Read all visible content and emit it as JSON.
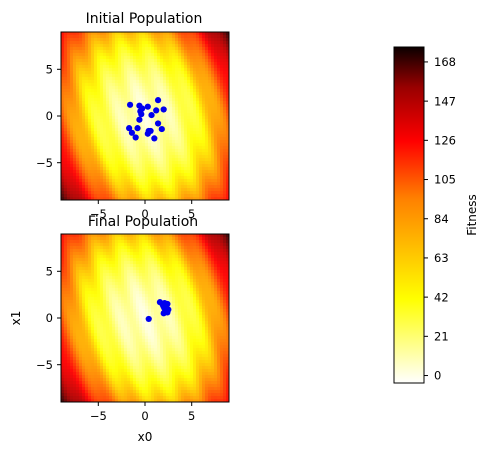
{
  "chart_data": [
    {
      "type": "scatter",
      "title": "Initial Population",
      "xlabel": "",
      "ylabel": "",
      "xlim": [
        -9,
        9
      ],
      "ylim": [
        -9,
        9
      ],
      "xticks": [
        "−5",
        "0",
        "5"
      ],
      "yticks": [
        "5",
        "0",
        "−5"
      ],
      "background": "fitness-heatmap",
      "point_color": "#0000ee",
      "points": [
        [
          -1.6,
          1.2
        ],
        [
          -0.6,
          1.1
        ],
        [
          0.3,
          1.0
        ],
        [
          1.4,
          1.7
        ],
        [
          1.2,
          0.6
        ],
        [
          2.0,
          0.7
        ],
        [
          -0.5,
          0.5
        ],
        [
          0.7,
          0.1
        ],
        [
          -0.4,
          0.2
        ],
        [
          -0.6,
          -0.4
        ],
        [
          1.4,
          -0.8
        ],
        [
          -1.7,
          -1.3
        ],
        [
          -0.8,
          -1.3
        ],
        [
          1.8,
          -1.4
        ],
        [
          0.6,
          -1.6
        ],
        [
          0.3,
          -1.9
        ],
        [
          -1.4,
          -1.8
        ],
        [
          0.4,
          -1.6
        ],
        [
          -1.0,
          -2.3
        ],
        [
          -0.3,
          0.8
        ],
        [
          1.0,
          -2.4
        ]
      ]
    },
    {
      "type": "scatter",
      "title": "Final Population",
      "xlabel": "x0",
      "ylabel": "x1",
      "xlim": [
        -9,
        9
      ],
      "ylim": [
        -9,
        9
      ],
      "xticks": [
        "−5",
        "0",
        "5"
      ],
      "yticks": [
        "5",
        "0",
        "−5"
      ],
      "background": "fitness-heatmap",
      "point_color": "#0000ee",
      "points": [
        [
          1.6,
          1.7
        ],
        [
          2.1,
          1.6
        ],
        [
          2.4,
          1.5
        ],
        [
          2.0,
          1.2
        ],
        [
          2.3,
          1.1
        ],
        [
          1.9,
          1.4
        ],
        [
          2.2,
          0.8
        ],
        [
          2.5,
          0.9
        ],
        [
          2.0,
          0.5
        ],
        [
          2.4,
          0.6
        ],
        [
          2.1,
          1.0
        ],
        [
          0.4,
          -0.1
        ]
      ]
    },
    {
      "type": "heatmap",
      "colorbar_label": "Fitness",
      "range": [
        -4,
        176
      ],
      "ticks": [
        "0",
        "21",
        "42",
        "63",
        "84",
        "105",
        "126",
        "147",
        "168"
      ],
      "tick_values": [
        0,
        21,
        42,
        63,
        84,
        105,
        126,
        147,
        168
      ],
      "colormap": "hot_r"
    }
  ]
}
